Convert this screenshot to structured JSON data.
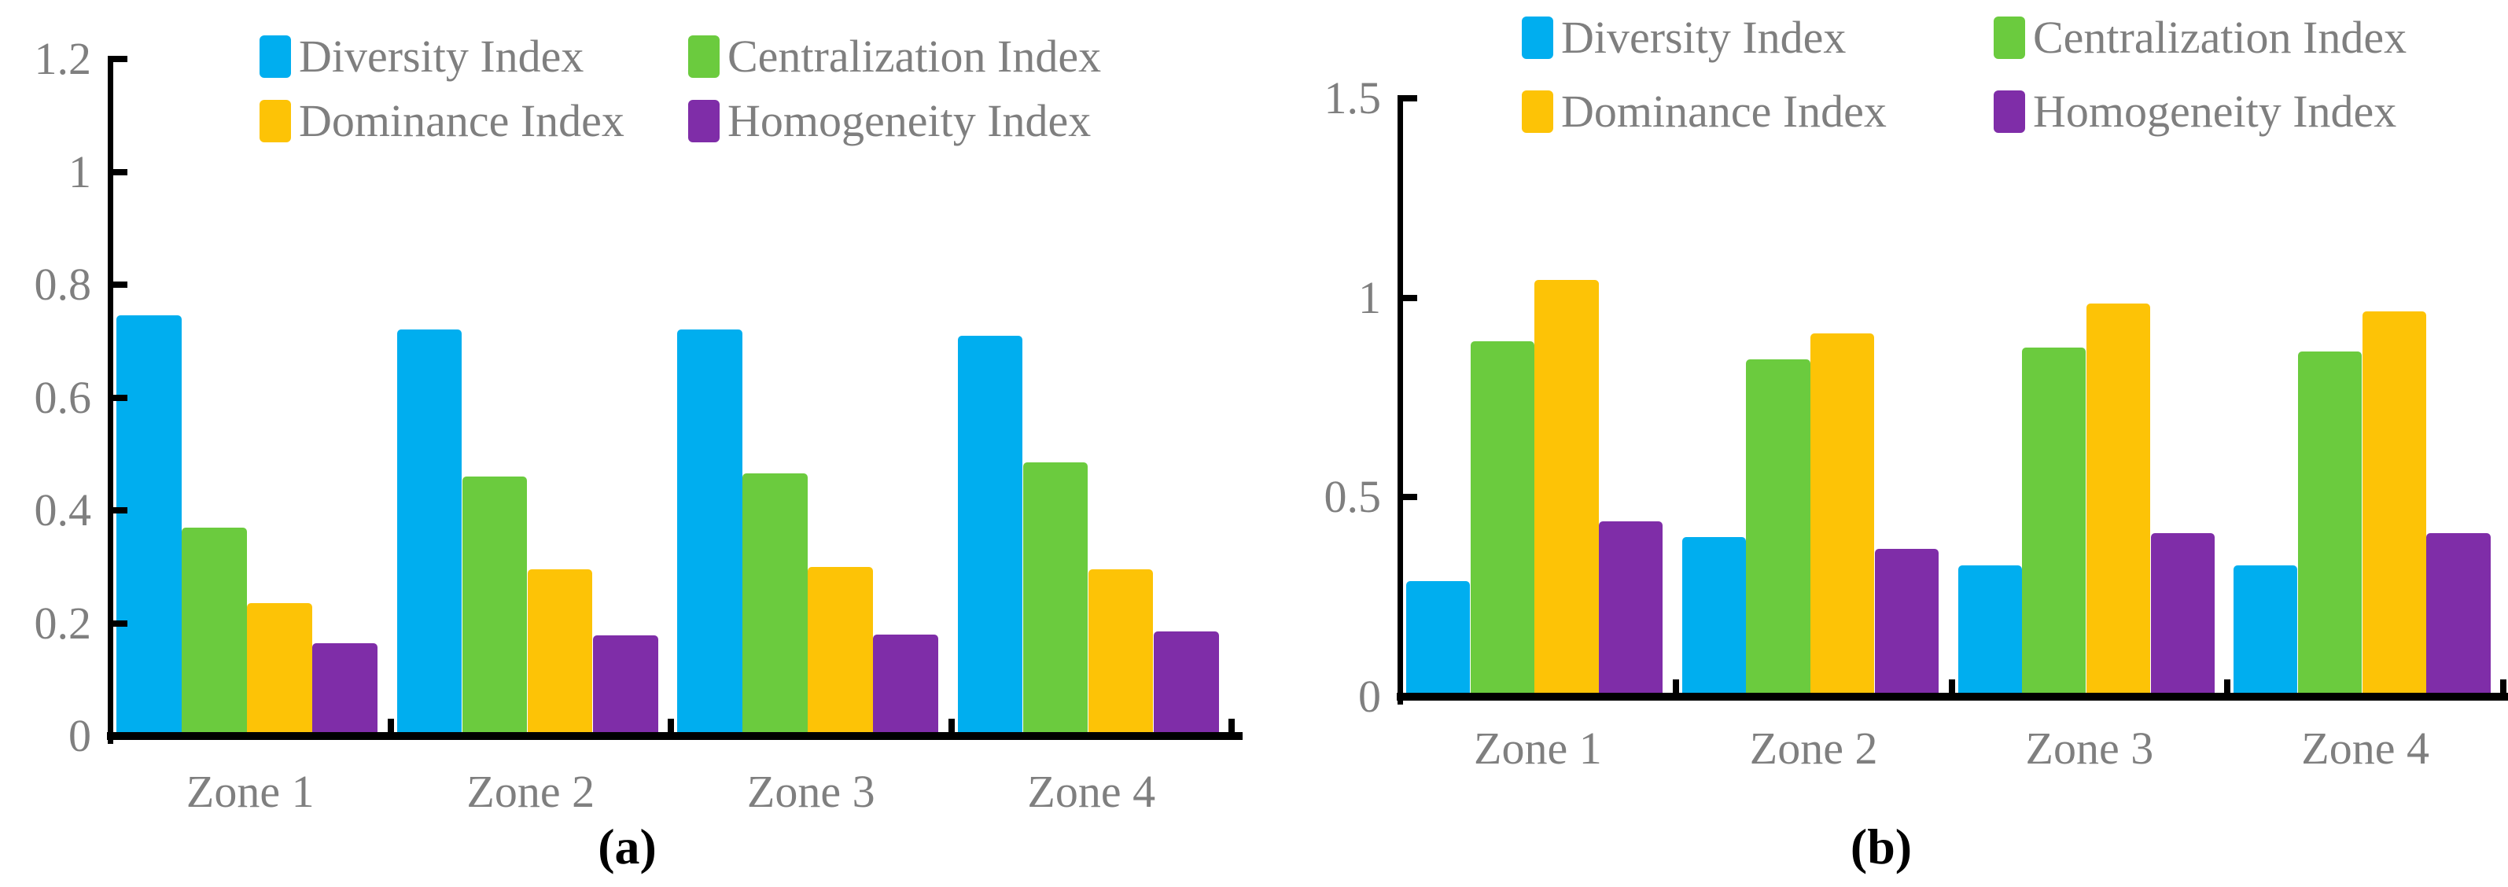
{
  "figure": {
    "background": "#ffffff",
    "text_color": "#7f7f7f",
    "axis_color": "#000000"
  },
  "chart_data": [
    {
      "id": "a",
      "type": "bar",
      "caption": "(a)",
      "title": "",
      "xlabel": "",
      "ylabel": "",
      "grid": false,
      "legend_position": "top-center",
      "ylim": [
        0,
        1.2
      ],
      "categories": [
        "Zone 1",
        "Zone 2",
        "Zone 3",
        "Zone 4"
      ],
      "y_ticks": [
        {
          "value": 0,
          "label": "0"
        },
        {
          "value": 0.2,
          "label": "0.2"
        },
        {
          "value": 0.4,
          "label": "0.4"
        },
        {
          "value": 0.6,
          "label": "0.6"
        },
        {
          "value": 0.8,
          "label": "0.8"
        },
        {
          "value": 1,
          "label": "1"
        },
        {
          "value": 1.2,
          "label": "1.2"
        }
      ],
      "series": [
        {
          "name": "Diversity Index",
          "color": "#00AEEF",
          "values": [
            0.745,
            0.72,
            0.72,
            0.71
          ]
        },
        {
          "name": "Centralization Index",
          "color": "#6BCB3E",
          "values": [
            0.37,
            0.46,
            0.465,
            0.485
          ]
        },
        {
          "name": "Dominance Index",
          "color": "#FDC306",
          "values": [
            0.235,
            0.295,
            0.3,
            0.295
          ]
        },
        {
          "name": "Homogeneity Index",
          "color": "#7F2DA8",
          "values": [
            0.165,
            0.178,
            0.18,
            0.185
          ]
        }
      ]
    },
    {
      "id": "b",
      "type": "bar",
      "caption": "(b)",
      "title": "",
      "xlabel": "",
      "ylabel": "",
      "grid": false,
      "legend_position": "top-center",
      "ylim": [
        0,
        1.5
      ],
      "categories": [
        "Zone 1",
        "Zone 2",
        "Zone 3",
        "Zone 4"
      ],
      "y_ticks": [
        {
          "value": 0,
          "label": "0"
        },
        {
          "value": 0.5,
          "label": "0.5"
        },
        {
          "value": 1,
          "label": "1"
        },
        {
          "value": 1.5,
          "label": "1.5"
        }
      ],
      "series": [
        {
          "name": "Diversity Index",
          "color": "#00AEEF",
          "values": [
            0.29,
            0.4,
            0.33,
            0.33
          ]
        },
        {
          "name": "Centralization Index",
          "color": "#6BCB3E",
          "values": [
            0.89,
            0.845,
            0.875,
            0.865
          ]
        },
        {
          "name": "Dominance Index",
          "color": "#FDC306",
          "values": [
            1.045,
            0.91,
            0.985,
            0.965
          ]
        },
        {
          "name": "Homogeneity Index",
          "color": "#7F2DA8",
          "values": [
            0.44,
            0.37,
            0.41,
            0.41
          ]
        }
      ]
    }
  ]
}
